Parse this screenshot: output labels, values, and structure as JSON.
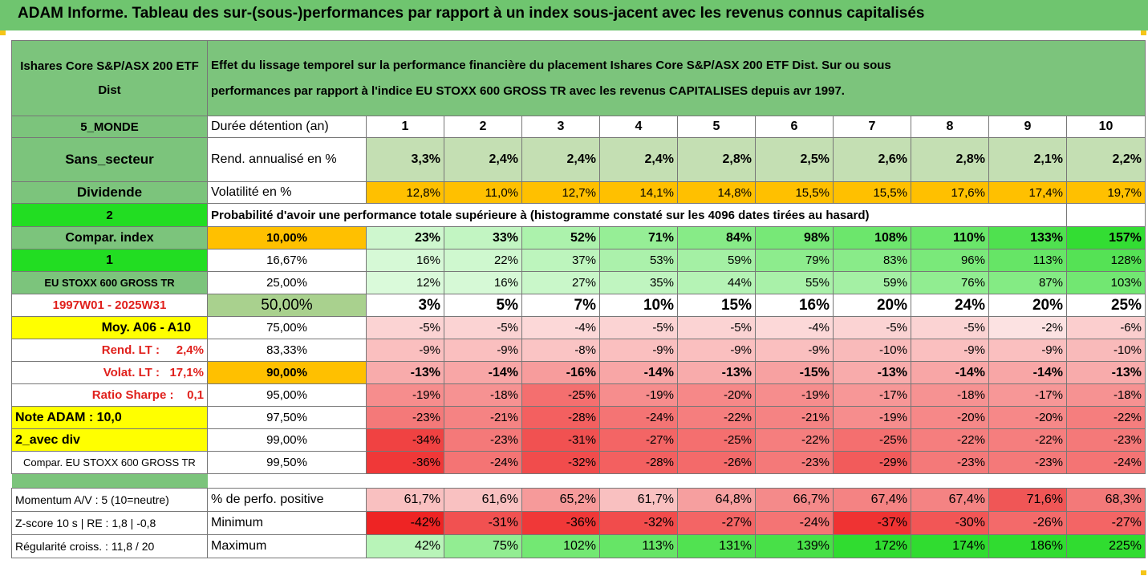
{
  "banner": {
    "title": "ADAM Informe. Tableau des sur-(sous-)performances par rapport à un index sous-jacent avec les revenus connus capitalisés"
  },
  "header": {
    "fund_name": "Ishares Core S&P/ASX 200 ETF Dist",
    "description_line1": "Effet du lissage temporel sur la performance financière du placement Ishares Core S&P/ASX 200 ETF Dist. Sur ou sous",
    "description_line2": "performances par rapport à l'indice EU STOXX 600 GROSS TR avec les revenus CAPITALISES depuis avr 1997."
  },
  "side": {
    "region": "5_MONDE",
    "sector": "Sans_secteur",
    "dividend": "Dividende",
    "num2": "2",
    "compar_index": "Compar. index",
    "num1": "1",
    "index_name": "EU STOXX 600 GROSS TR",
    "period": "1997W01 - 2025W31",
    "moy": "Moy. A06 - A10",
    "rend_lt": "Rend. LT :     2,4%",
    "volat_lt": "Volat. LT :   17,1%",
    "sharpe": "Ratio Sharpe :    0,1",
    "note": "Note ADAM : 10,0",
    "avec_div": "2_avec div",
    "compar_full": "Compar. EU STOXX 600 GROSS TR"
  },
  "rows": {
    "duree_label": "Durée détention (an)",
    "years": [
      "1",
      "2",
      "3",
      "4",
      "5",
      "6",
      "7",
      "8",
      "9",
      "10"
    ],
    "rend_label": "Rend. annualisé en %",
    "rend": [
      "3,3%",
      "2,4%",
      "2,4%",
      "2,4%",
      "2,8%",
      "2,5%",
      "2,6%",
      "2,8%",
      "2,1%",
      "2,2%"
    ],
    "vol_label": "Volatilité en %",
    "vol": [
      "12,8%",
      "11,0%",
      "12,7%",
      "14,1%",
      "14,8%",
      "15,5%",
      "15,5%",
      "17,6%",
      "17,4%",
      "19,7%"
    ],
    "proba_label": "Probabilité d'avoir une performance totale supérieure à (histogramme constaté sur les 4096 dates tirées au hasard)"
  },
  "percentiles": [
    {
      "p": "10,00%",
      "v": [
        "23%",
        "33%",
        "52%",
        "71%",
        "84%",
        "98%",
        "108%",
        "110%",
        "133%",
        "157%"
      ]
    },
    {
      "p": "16,67%",
      "v": [
        "16%",
        "22%",
        "37%",
        "53%",
        "59%",
        "79%",
        "83%",
        "96%",
        "113%",
        "128%"
      ]
    },
    {
      "p": "25,00%",
      "v": [
        "12%",
        "16%",
        "27%",
        "35%",
        "44%",
        "55%",
        "59%",
        "76%",
        "87%",
        "103%"
      ]
    },
    {
      "p": "50,00%",
      "v": [
        "3%",
        "5%",
        "7%",
        "10%",
        "15%",
        "16%",
        "20%",
        "24%",
        "20%",
        "25%"
      ]
    },
    {
      "p": "75,00%",
      "v": [
        "-5%",
        "-5%",
        "-4%",
        "-5%",
        "-5%",
        "-4%",
        "-5%",
        "-5%",
        "-2%",
        "-6%"
      ]
    },
    {
      "p": "83,33%",
      "v": [
        "-9%",
        "-9%",
        "-8%",
        "-9%",
        "-9%",
        "-9%",
        "-10%",
        "-9%",
        "-9%",
        "-10%"
      ]
    },
    {
      "p": "90,00%",
      "v": [
        "-13%",
        "-14%",
        "-16%",
        "-14%",
        "-13%",
        "-15%",
        "-13%",
        "-14%",
        "-14%",
        "-13%"
      ]
    },
    {
      "p": "95,00%",
      "v": [
        "-19%",
        "-18%",
        "-25%",
        "-19%",
        "-20%",
        "-19%",
        "-17%",
        "-18%",
        "-17%",
        "-18%"
      ]
    },
    {
      "p": "97,50%",
      "v": [
        "-23%",
        "-21%",
        "-28%",
        "-24%",
        "-22%",
        "-21%",
        "-19%",
        "-20%",
        "-20%",
        "-22%"
      ]
    },
    {
      "p": "99,00%",
      "v": [
        "-34%",
        "-23%",
        "-31%",
        "-27%",
        "-25%",
        "-22%",
        "-25%",
        "-22%",
        "-22%",
        "-23%"
      ]
    },
    {
      "p": "99,50%",
      "v": [
        "-36%",
        "-24%",
        "-32%",
        "-28%",
        "-26%",
        "-23%",
        "-29%",
        "-23%",
        "-23%",
        "-24%"
      ]
    }
  ],
  "stats": [
    {
      "side": "Momentum A/V : 5 (10=neutre)",
      "label": "% de perfo. positive",
      "v": [
        "61,7%",
        "61,6%",
        "65,2%",
        "61,7%",
        "64,8%",
        "66,7%",
        "67,4%",
        "67,4%",
        "71,6%",
        "68,3%"
      ]
    },
    {
      "side": "Z-score 10 s  | RE : 1,8 | -0,8",
      "label": "Minimum",
      "v": [
        "-42%",
        "-31%",
        "-36%",
        "-32%",
        "-27%",
        "-24%",
        "-37%",
        "-30%",
        "-26%",
        "-27%"
      ]
    },
    {
      "side": "Régularité croiss. : 11,8 / 20",
      "label": "Maximum",
      "v": [
        "42%",
        "75%",
        "102%",
        "113%",
        "131%",
        "139%",
        "172%",
        "174%",
        "186%",
        "225%"
      ]
    }
  ],
  "colors": {
    "header_green": "#7cc47c",
    "orange": "#ffc000",
    "yellow": "#ffff00",
    "bright_green": "#22dd22",
    "red_text": "#e0201c"
  }
}
